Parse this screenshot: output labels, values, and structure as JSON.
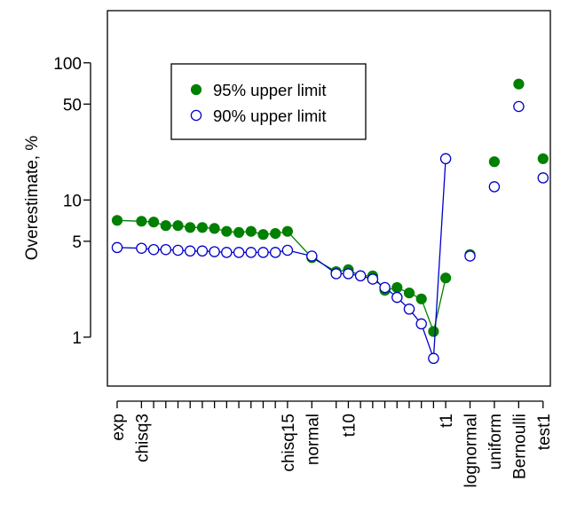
{
  "chart_data": {
    "type": "scatter",
    "ylabel": "Overestimate, %",
    "xlabel": "",
    "y_scale": "log",
    "ylim": [
      0.44,
      240
    ],
    "y_ticks": [
      1,
      5,
      10,
      50,
      100
    ],
    "y_tick_labels": [
      "1",
      "5",
      "10",
      "50",
      "100"
    ],
    "x_ticks": [
      1,
      3,
      4,
      5,
      6,
      7,
      8,
      9,
      10,
      11,
      12,
      13,
      14,
      15,
      17,
      19,
      20,
      21,
      22,
      23,
      24,
      25,
      26,
      27,
      28,
      30,
      32,
      34,
      36
    ],
    "x_tick_labels": [
      {
        "x": 1,
        "label": "exp"
      },
      {
        "x": 3,
        "label": "chisq3"
      },
      {
        "x": 15,
        "label": "chisq15"
      },
      {
        "x": 17,
        "label": "normal"
      },
      {
        "x": 20,
        "label": "t10"
      },
      {
        "x": 28,
        "label": "t1"
      },
      {
        "x": 30,
        "label": "lognormal"
      },
      {
        "x": 32,
        "label": "uniform"
      },
      {
        "x": 34,
        "label": "Bernoulli"
      },
      {
        "x": 36,
        "label": "test1"
      }
    ],
    "xlim": [
      0.2,
      36.6
    ],
    "legend": {
      "position": "top-left",
      "entries": [
        "95% upper limit",
        "90% upper limit"
      ]
    },
    "series": [
      {
        "name": "95% upper limit",
        "color": "#008000",
        "marker": "filled-circle",
        "segments": [
          [
            [
              1,
              7.1
            ],
            [
              3,
              7.0
            ],
            [
              4,
              6.9
            ],
            [
              5,
              6.5
            ],
            [
              6,
              6.5
            ],
            [
              7,
              6.3
            ],
            [
              8,
              6.3
            ],
            [
              9,
              6.2
            ],
            [
              10,
              5.9
            ],
            [
              11,
              5.8
            ],
            [
              12,
              5.9
            ],
            [
              13,
              5.6
            ],
            [
              14,
              5.7
            ],
            [
              15,
              5.9
            ],
            [
              17,
              3.8
            ],
            [
              19,
              3.0
            ],
            [
              20,
              3.1
            ],
            [
              21,
              2.8
            ],
            [
              22,
              2.8
            ],
            [
              23,
              2.2
            ],
            [
              24,
              2.3
            ],
            [
              25,
              2.1
            ],
            [
              26,
              1.9
            ],
            [
              27,
              1.1
            ],
            [
              28,
              2.7
            ]
          ],
          [
            [
              30,
              4.0
            ]
          ],
          [
            [
              32,
              19.0
            ]
          ],
          [
            [
              34,
              70.0
            ]
          ],
          [
            [
              36,
              20.0
            ]
          ]
        ]
      },
      {
        "name": "90% upper limit",
        "color": "#0000CC",
        "marker": "open-circle",
        "segments": [
          [
            [
              1,
              4.5
            ],
            [
              3,
              4.45
            ],
            [
              4,
              4.35
            ],
            [
              5,
              4.35
            ],
            [
              6,
              4.3
            ],
            [
              7,
              4.25
            ],
            [
              8,
              4.25
            ],
            [
              9,
              4.2
            ],
            [
              10,
              4.15
            ],
            [
              11,
              4.15
            ],
            [
              12,
              4.15
            ],
            [
              13,
              4.15
            ],
            [
              14,
              4.15
            ],
            [
              15,
              4.3
            ],
            [
              17,
              3.9
            ],
            [
              19,
              2.9
            ],
            [
              20,
              2.9
            ],
            [
              21,
              2.8
            ],
            [
              22,
              2.65
            ],
            [
              23,
              2.3
            ],
            [
              24,
              1.95
            ],
            [
              25,
              1.6
            ],
            [
              26,
              1.25
            ],
            [
              27,
              0.7
            ],
            [
              28,
              20.0
            ]
          ],
          [
            [
              30,
              3.9
            ]
          ],
          [
            [
              32,
              12.5
            ]
          ],
          [
            [
              34,
              48.0
            ]
          ],
          [
            [
              36,
              14.5
            ]
          ]
        ]
      }
    ]
  }
}
